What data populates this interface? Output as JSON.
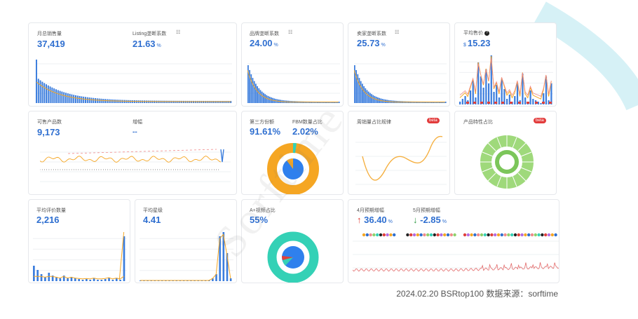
{
  "row1": {
    "monthly_sales": {
      "label": "月总销售量",
      "value": "37,419"
    },
    "listing_monopoly": {
      "label": "Listing垄断系数",
      "value": "21.63",
      "unit": "%"
    },
    "brand_monopoly": {
      "label": "品牌垄断系数",
      "value": "24.00",
      "unit": "%"
    },
    "seller_monopoly": {
      "label": "卖家垄断系数",
      "value": "25.73",
      "unit": "%"
    },
    "avg_price": {
      "label": "平均售价",
      "prefix": "$",
      "value": "15.23"
    }
  },
  "row2": {
    "sellable_products": {
      "label": "可售产品数",
      "value": "9,173"
    },
    "growth": {
      "label": "增幅",
      "value": "--"
    },
    "third_party_share": {
      "label": "第三方份额",
      "value": "91.61%"
    },
    "fbm_share": {
      "label": "FBM数量占比",
      "value": "2.02%"
    },
    "cycle_pattern": {
      "label": "周销量占比规律",
      "badge": "beta"
    },
    "product_feature": {
      "label": "产品特性占比",
      "badge": "beta"
    }
  },
  "row3": {
    "avg_reviews": {
      "label": "平均评价数量",
      "value": "2,216"
    },
    "avg_rating": {
      "label": "平均星级",
      "value": "4.41"
    },
    "aplus_video": {
      "label": "A+视频占比",
      "value": "55%"
    },
    "april_forecast": {
      "label": "4月预期增幅",
      "arrow": "↑",
      "value": "36.40",
      "unit": "%"
    },
    "may_forecast": {
      "label": "5月预期增幅",
      "arrow": "↓",
      "value": "-2.85",
      "unit": "%"
    }
  },
  "footer": {
    "text": "2024.02.20 BSRtop100 数据来源：sorftime"
  },
  "watermark": {
    "text": "Sorftime"
  },
  "colors": {
    "blue": "#2f6fd0",
    "orange": "#f5a623",
    "teal": "#34d1b6",
    "green": "#8fd06a",
    "red": "#e0403a"
  }
}
